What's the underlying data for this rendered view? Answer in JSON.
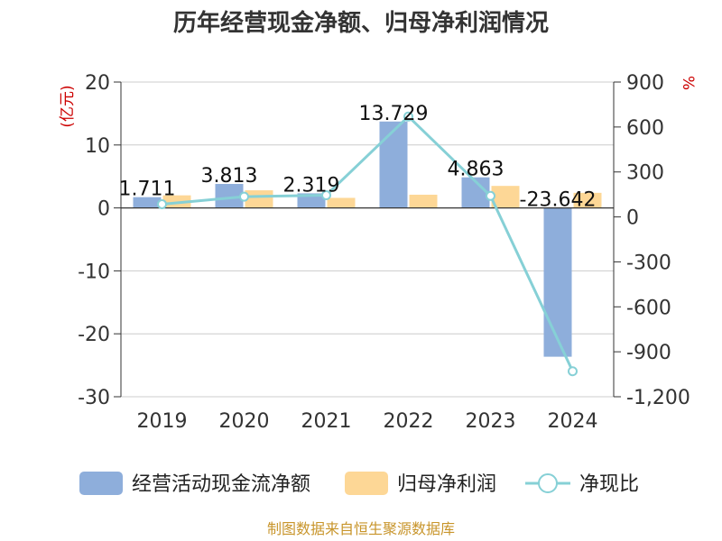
{
  "chart_data": {
    "type": "bar",
    "title": "历年经营现金净额、归母净利润情况",
    "left_unit": "(亿元)",
    "right_unit": "%",
    "categories": [
      "2019",
      "2020",
      "2021",
      "2022",
      "2023",
      "2024"
    ],
    "series": [
      {
        "name": "经营活动现金流净额",
        "kind": "bar",
        "axis": "left",
        "values": [
          1.711,
          3.813,
          2.319,
          13.729,
          4.863,
          -23.642
        ],
        "labels": [
          "1.711",
          "3.813",
          "2.319",
          "13.729",
          "4.863",
          "-23.642"
        ]
      },
      {
        "name": "归母净利润",
        "kind": "bar",
        "axis": "left",
        "values": [
          2.0,
          2.8,
          1.6,
          2.1,
          3.5,
          2.4
        ]
      },
      {
        "name": "净现比",
        "kind": "line",
        "axis": "right",
        "values": [
          85,
          135,
          145,
          670,
          140,
          -1030
        ]
      }
    ],
    "left_ylim": [
      -30,
      20
    ],
    "left_ticks": [
      "20",
      "10",
      "0",
      "-10",
      "-20",
      "-30"
    ],
    "left_tick_values": [
      20,
      10,
      0,
      -10,
      -20,
      -30
    ],
    "right_ylim": [
      -1200,
      900
    ],
    "right_ticks": [
      "900",
      "600",
      "300",
      "0",
      "-300",
      "-600",
      "-900",
      "-1,200"
    ],
    "right_tick_values": [
      900,
      600,
      300,
      0,
      -300,
      -600,
      -900,
      -1200
    ],
    "grid": true,
    "legend_position": "bottom",
    "colors": {
      "cash_bar": "#8eaedb",
      "profit_bar": "#fdd796",
      "ratio_line": "#86d0d6",
      "grid": "#cccccc",
      "unit": "#cc0000"
    }
  },
  "source": "制图数据来自恒生聚源数据库",
  "source_color": "#c8952b"
}
